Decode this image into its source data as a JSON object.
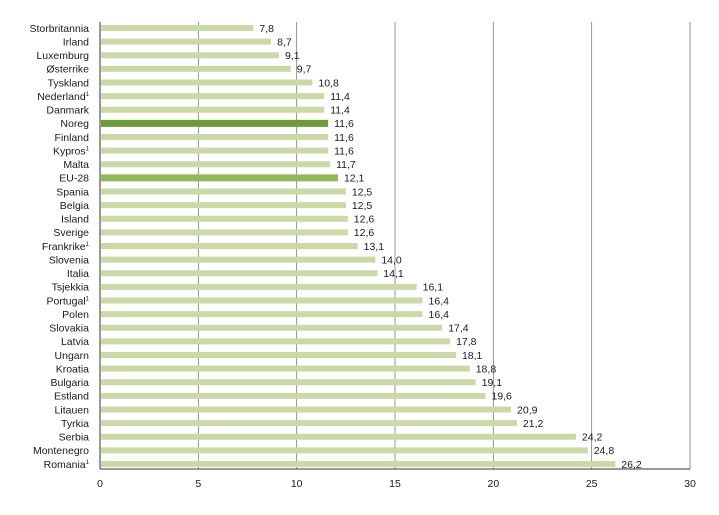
{
  "chart_data": {
    "type": "bar",
    "orientation": "horizontal",
    "title": "",
    "xlabel": "",
    "ylabel": "",
    "xlim": [
      0,
      30
    ],
    "x_ticks": [
      "0",
      "5",
      "10",
      "15",
      "20",
      "25",
      "30"
    ],
    "grid": "vertical",
    "legend": "none",
    "decimal_separator": ",",
    "colors": {
      "default_bar": "#c9d9a8",
      "highlight_norway": "#6f9a3c",
      "highlight_eu": "#93b85b",
      "grid": "#7a7a7a",
      "axis": "#333333"
    },
    "categories": [
      "Storbritannia",
      "Irland",
      "Luxemburg",
      "Østerrike",
      "Tyskland",
      "Nederland",
      "Danmark",
      "Noreg",
      "Finland",
      "Kypros",
      "Malta",
      "EU-28",
      "Spania",
      "Belgia",
      "Island",
      "Sverige",
      "Frankrike",
      "Slovenia",
      "Italia",
      "Tsjekkia",
      "Portugal",
      "Polen",
      "Slovakia",
      "Latvia",
      "Ungarn",
      "Kroatia",
      "Bulgaria",
      "Estland",
      "Litauen",
      "Tyrkia",
      "Serbia",
      "Montenegro",
      "Romania"
    ],
    "values": [
      7.8,
      8.7,
      9.1,
      9.7,
      10.8,
      11.4,
      11.4,
      11.6,
      11.6,
      11.6,
      11.7,
      12.1,
      12.5,
      12.5,
      12.6,
      12.6,
      13.1,
      14.0,
      14.1,
      16.1,
      16.4,
      16.4,
      17.4,
      17.8,
      18.1,
      18.8,
      19.1,
      19.6,
      20.9,
      21.2,
      24.2,
      24.8,
      26.2
    ],
    "value_labels": [
      "7,8",
      "8,7",
      "9,1",
      "9,7",
      "10,8",
      "11,4",
      "11,4",
      "11,6",
      "11,6",
      "11,6",
      "11,7",
      "12,1",
      "12,5",
      "12,5",
      "12,6",
      "12,6",
      "13,1",
      "14,0",
      "14,1",
      "16,1",
      "16,4",
      "16,4",
      "17,4",
      "17,8",
      "18,1",
      "18,8",
      "19,1",
      "19,6",
      "20,9",
      "21,2",
      "24,2",
      "24,8",
      "26,2"
    ],
    "footnote_marker": "1",
    "footnote_categories": [
      "Nederland",
      "Kypros",
      "Frankrike",
      "Portugal",
      "Romania"
    ],
    "highlight": {
      "Noreg": "highlight_norway",
      "EU-28": "highlight_eu"
    }
  }
}
